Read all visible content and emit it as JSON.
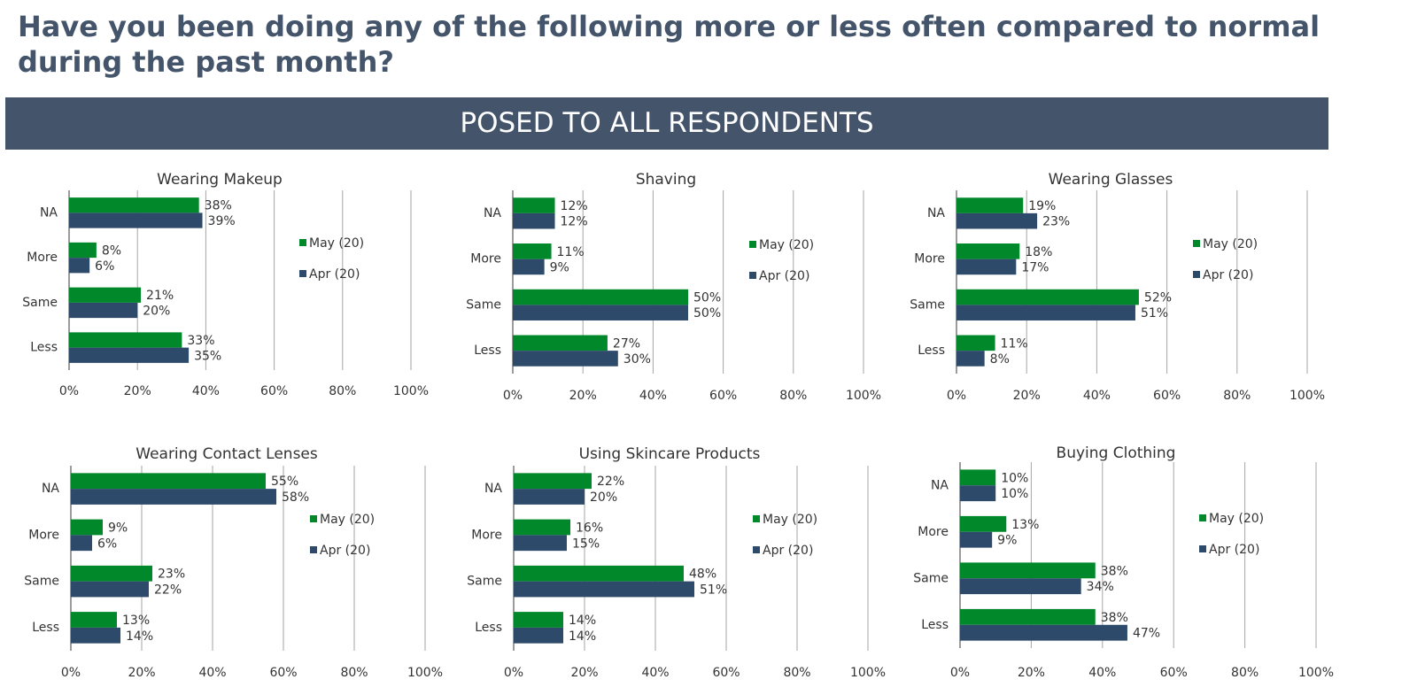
{
  "header": {
    "title": "Have you been doing any of the following more or less often compared to normal during the past month?",
    "banner": "POSED TO ALL RESPONDENTS"
  },
  "colors": {
    "may": "#00882b",
    "apr": "#2e4a6b",
    "grid": "#a6a6a6",
    "axis": "#595959",
    "banner": "#44546a"
  },
  "chart_data": [
    {
      "type": "bar",
      "title": "Wearing Makeup",
      "categories": [
        "NA",
        "More",
        "Same",
        "Less"
      ],
      "series": [
        {
          "name": "May (20)",
          "values": [
            38,
            8,
            21,
            33
          ]
        },
        {
          "name": "Apr (20)",
          "values": [
            39,
            6,
            20,
            35
          ]
        }
      ],
      "xlim": [
        0,
        100
      ],
      "xticks": [
        "0%",
        "20%",
        "40%",
        "60%",
        "80%",
        "100%"
      ],
      "legend": "right",
      "grid": true
    },
    {
      "type": "bar",
      "title": "Shaving",
      "categories": [
        "NA",
        "More",
        "Same",
        "Less"
      ],
      "series": [
        {
          "name": "May (20)",
          "values": [
            12,
            11,
            50,
            27
          ]
        },
        {
          "name": "Apr (20)",
          "values": [
            12,
            9,
            50,
            30
          ]
        }
      ],
      "xlim": [
        0,
        100
      ],
      "xticks": [
        "0%",
        "20%",
        "40%",
        "60%",
        "80%",
        "100%"
      ],
      "legend": "right",
      "grid": true
    },
    {
      "type": "bar",
      "title": "Wearing Glasses",
      "categories": [
        "NA",
        "More",
        "Same",
        "Less"
      ],
      "series": [
        {
          "name": "May (20)",
          "values": [
            19,
            18,
            52,
            11
          ]
        },
        {
          "name": "Apr (20)",
          "values": [
            23,
            17,
            51,
            8
          ]
        }
      ],
      "xlim": [
        0,
        100
      ],
      "xticks": [
        "0%",
        "20%",
        "40%",
        "60%",
        "80%",
        "100%"
      ],
      "legend": "right",
      "grid": true
    },
    {
      "type": "bar",
      "title": "Wearing Contact Lenses",
      "categories": [
        "NA",
        "More",
        "Same",
        "Less"
      ],
      "series": [
        {
          "name": "May (20)",
          "values": [
            55,
            9,
            23,
            13
          ]
        },
        {
          "name": "Apr (20)",
          "values": [
            58,
            6,
            22,
            14
          ]
        }
      ],
      "xlim": [
        0,
        100
      ],
      "xticks": [
        "0%",
        "20%",
        "40%",
        "60%",
        "80%",
        "100%"
      ],
      "legend": "right",
      "grid": true
    },
    {
      "type": "bar",
      "title": "Using Skincare Products",
      "categories": [
        "NA",
        "More",
        "Same",
        "Less"
      ],
      "series": [
        {
          "name": "May (20)",
          "values": [
            22,
            16,
            48,
            14
          ]
        },
        {
          "name": "Apr (20)",
          "values": [
            20,
            15,
            51,
            14
          ]
        }
      ],
      "xlim": [
        0,
        100
      ],
      "xticks": [
        "0%",
        "20%",
        "40%",
        "60%",
        "80%",
        "100%"
      ],
      "legend": "right",
      "grid": true
    },
    {
      "type": "bar",
      "title": "Buying Clothing",
      "categories": [
        "NA",
        "More",
        "Same",
        "Less"
      ],
      "series": [
        {
          "name": "May (20)",
          "values": [
            10,
            13,
            38,
            38
          ]
        },
        {
          "name": "Apr (20)",
          "values": [
            10,
            9,
            34,
            47
          ]
        }
      ],
      "xlim": [
        0,
        100
      ],
      "xticks": [
        "0%",
        "20%",
        "40%",
        "60%",
        "80%",
        "100%"
      ],
      "legend": "right",
      "grid": true
    }
  ]
}
